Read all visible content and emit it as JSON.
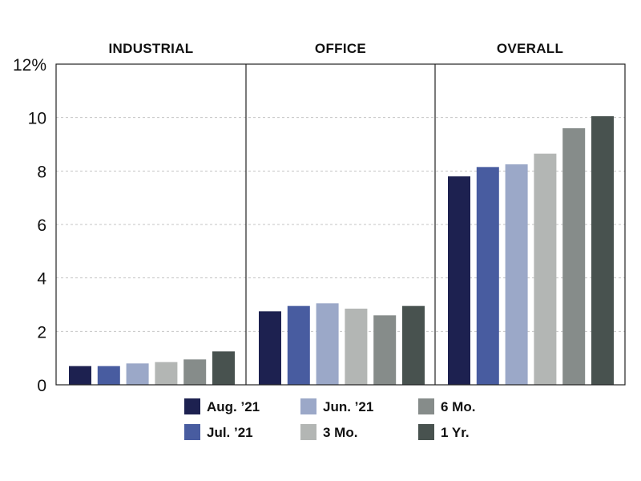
{
  "chart_data": {
    "type": "bar",
    "title": "",
    "xlabel": "",
    "ylabel": "",
    "ylim": [
      0,
      12
    ],
    "yticks": [
      0,
      2,
      4,
      6,
      8,
      10,
      12
    ],
    "ytick_labels": [
      "0",
      "2",
      "4",
      "6",
      "8",
      "10",
      "12%"
    ],
    "grid": true,
    "legend_position": "bottom",
    "panels": [
      {
        "title": "INDUSTRIAL",
        "values": [
          0.7,
          0.7,
          0.8,
          0.85,
          0.95,
          1.25
        ]
      },
      {
        "title": "OFFICE",
        "values": [
          2.75,
          2.95,
          3.05,
          2.85,
          2.6,
          2.95
        ]
      },
      {
        "title": "OVERALL",
        "values": [
          7.8,
          8.15,
          8.25,
          8.65,
          9.6,
          10.05
        ]
      }
    ],
    "series": [
      {
        "name": "Aug. ’21",
        "color": "#1d2150"
      },
      {
        "name": "Jul. ’21",
        "color": "#485ca0"
      },
      {
        "name": "Jun. ’21",
        "color": "#9ba8c8"
      },
      {
        "name": "3 Mo.",
        "color": "#b3b6b4"
      },
      {
        "name": "6 Mo.",
        "color": "#868c8a"
      },
      {
        "name": "1 Yr.",
        "color": "#48524f"
      }
    ]
  }
}
